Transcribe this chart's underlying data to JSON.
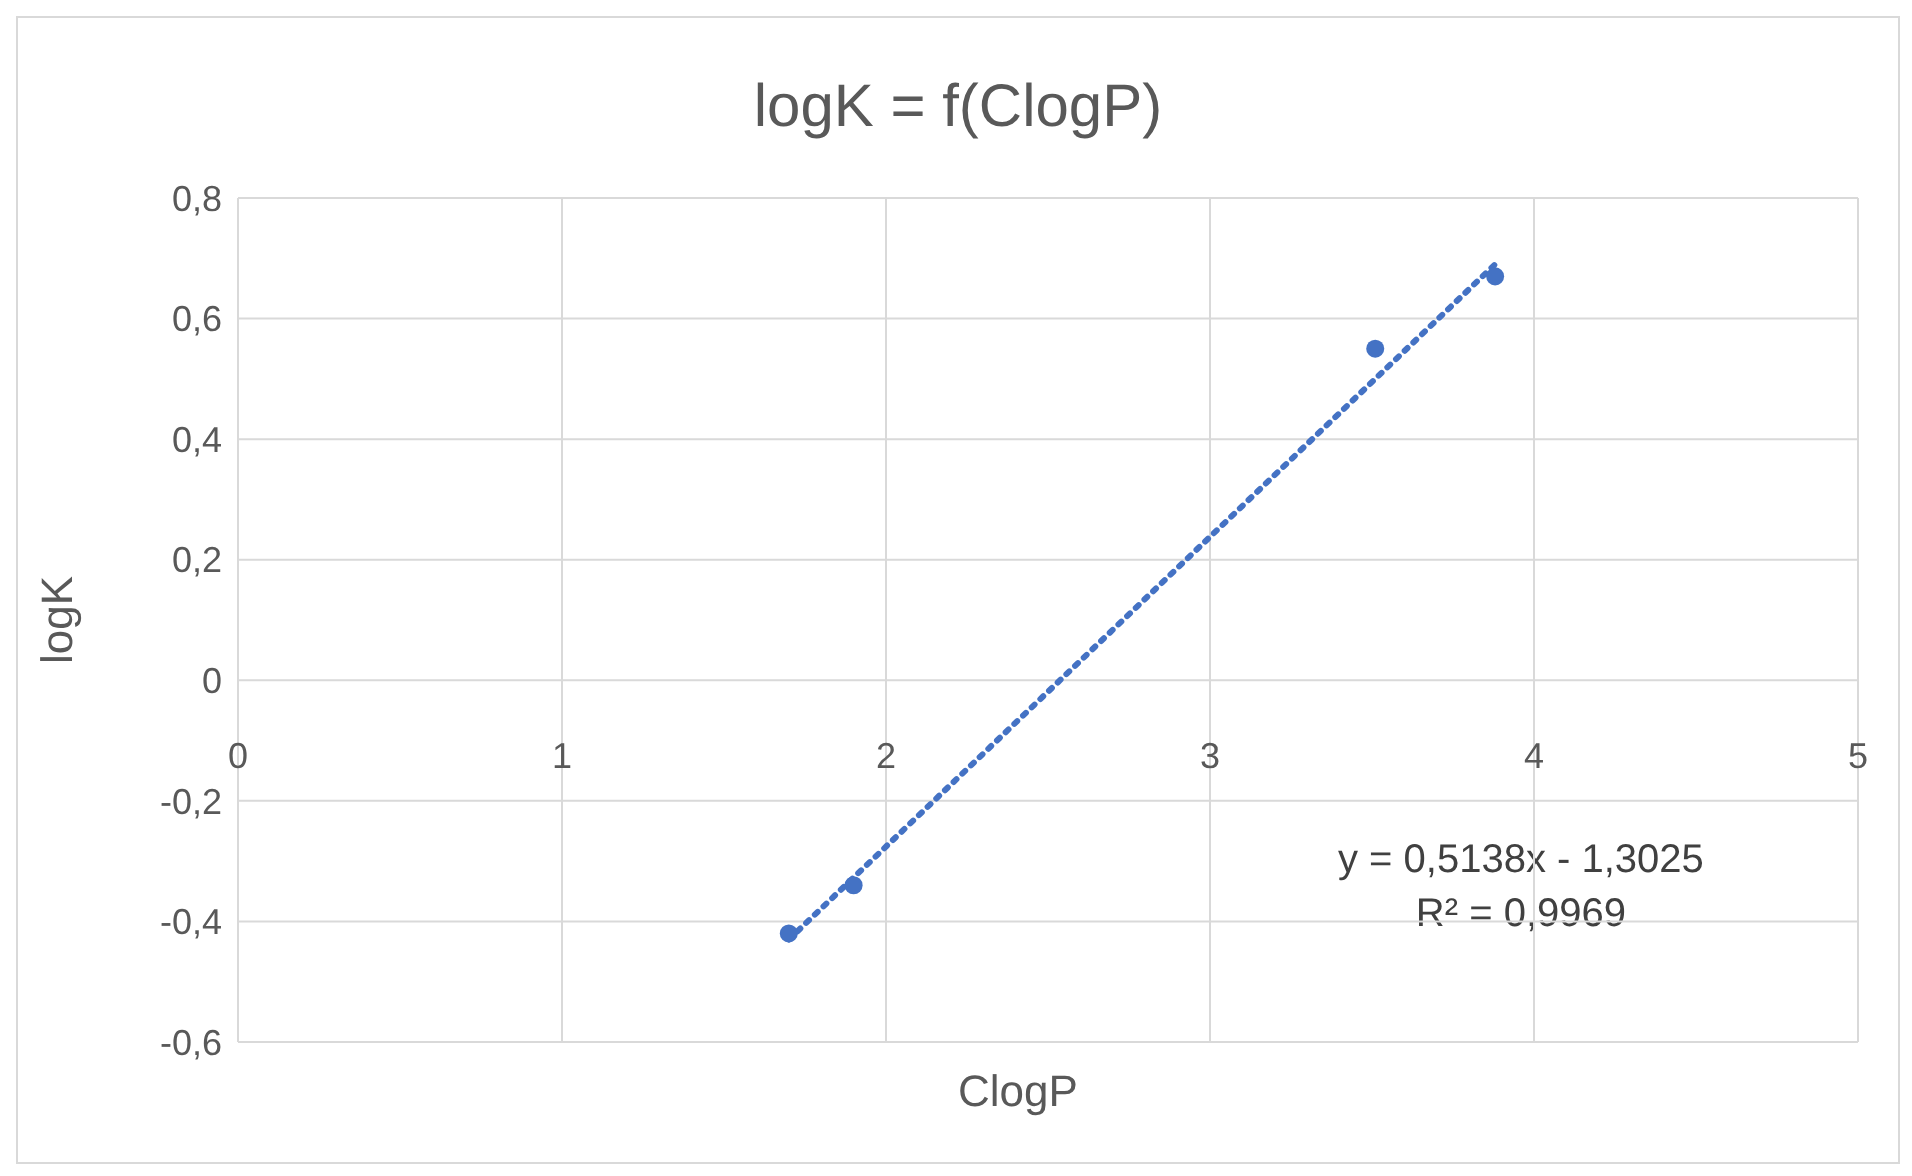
{
  "chart_data": {
    "type": "scatter",
    "title": "logK = f(ClogP)",
    "xlabel": "ClogP",
    "ylabel": "logK",
    "series": [
      {
        "color": "#4472c4",
        "marker": "circle",
        "x": [
          1.7,
          1.9,
          3.51,
          3.88
        ],
        "values": [
          -0.42,
          -0.34,
          0.55,
          0.67
        ]
      },
      {
        "type": "line",
        "color": "#4472c4",
        "marker": "none",
        "line_style": "dotted",
        "x": [
          1.7,
          3.88
        ],
        "values": [
          -0.43,
          0.69
        ]
      }
    ],
    "xlim": [
      0,
      5
    ],
    "xticks": [
      0,
      1,
      2,
      3,
      4,
      5
    ],
    "ylim": [
      -0.6,
      0.8
    ],
    "yticks": [
      {
        "value": -0.6,
        "label": "-0,6"
      },
      {
        "value": -0.4,
        "label": "-0,4"
      },
      {
        "value": -0.2,
        "label": "-0,2"
      },
      {
        "value": 0,
        "label": "0"
      },
      {
        "value": 0.2,
        "label": "0,2"
      },
      {
        "value": 0.4,
        "label": "0,4"
      },
      {
        "value": 0.6,
        "label": "0,6"
      },
      {
        "value": 0.8,
        "label": "0,8"
      }
    ],
    "grid": true,
    "annotations": [
      "y = 0,5138x - 1,3025",
      "R² = 0,9969"
    ]
  }
}
